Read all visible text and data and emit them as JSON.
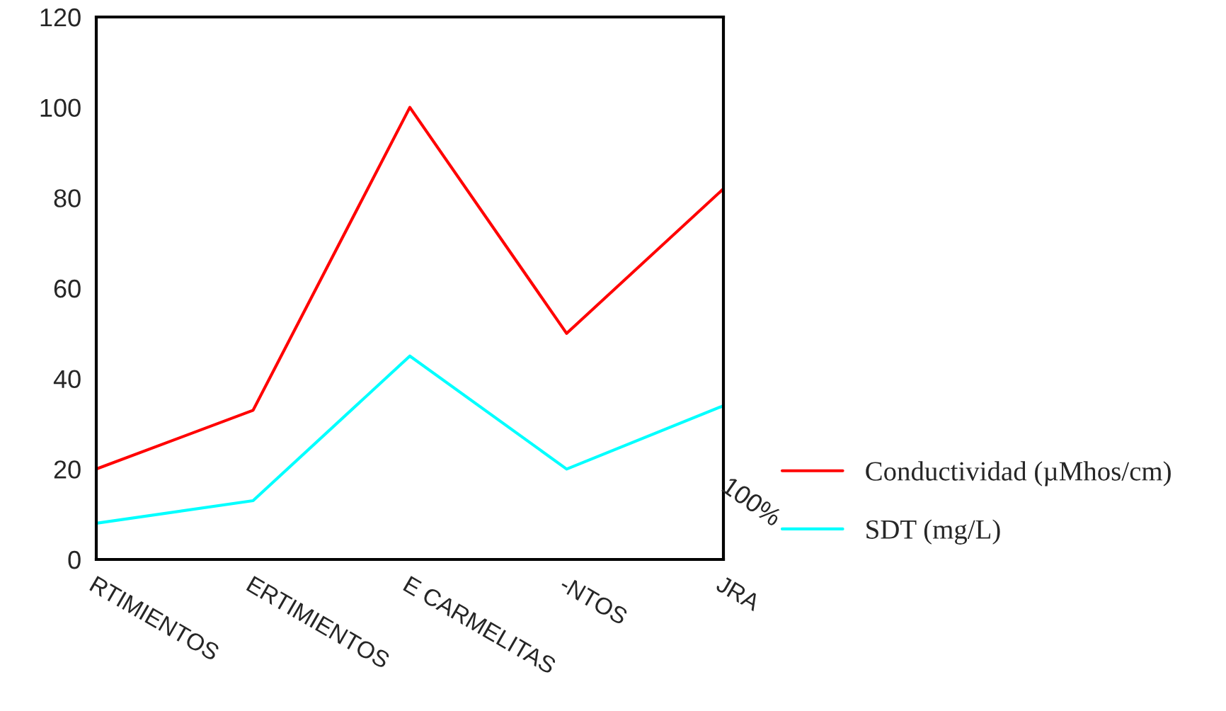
{
  "chart_data": {
    "type": "line",
    "categories": [
      "RTIMIENTOS",
      "ERTIMIENTOS",
      "E CARMELITAS",
      "-NTOS",
      "JRA"
    ],
    "series": [
      {
        "name": "Conductividad (µMhos/cm)",
        "color": "#ff0000",
        "values": [
          20,
          33,
          100,
          50,
          82
        ]
      },
      {
        "name": "SDT (mg/L)",
        "color": "#00ffff",
        "values": [
          8,
          13,
          45,
          20,
          34
        ]
      }
    ],
    "ylim": [
      0,
      120
    ],
    "yticks": [
      0,
      20,
      40,
      60,
      80,
      100,
      120
    ],
    "annotations": [
      "100%"
    ],
    "legend": "right",
    "grid": false
  }
}
